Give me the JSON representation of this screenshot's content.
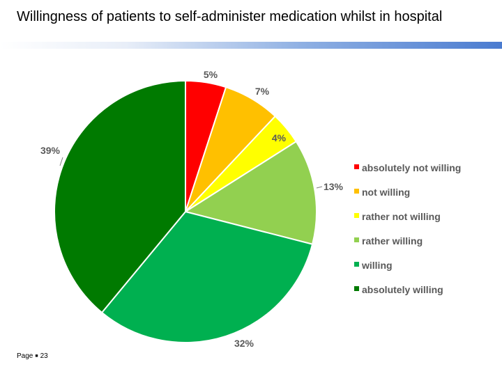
{
  "title": "Willingness of patients to self-administer medication whilst in hospital",
  "footer": {
    "page_label": "Page",
    "page_number": "23"
  },
  "chart_data": {
    "type": "pie",
    "title": "",
    "labels": [
      "absolutely not willing",
      "not willing",
      "rather not willing",
      "rather willing",
      "willing",
      "absolutely willing"
    ],
    "values": [
      5,
      7,
      4,
      13,
      32,
      39
    ],
    "value_labels": [
      "5%",
      "7%",
      "4%",
      "13%",
      "32%",
      "39%"
    ],
    "colors": [
      "#ff0000",
      "#ffc000",
      "#ffff00",
      "#92d050",
      "#00b050",
      "#007a00"
    ],
    "start_angle": "12 o'clock",
    "direction": "clockwise",
    "legend_position": "right"
  }
}
